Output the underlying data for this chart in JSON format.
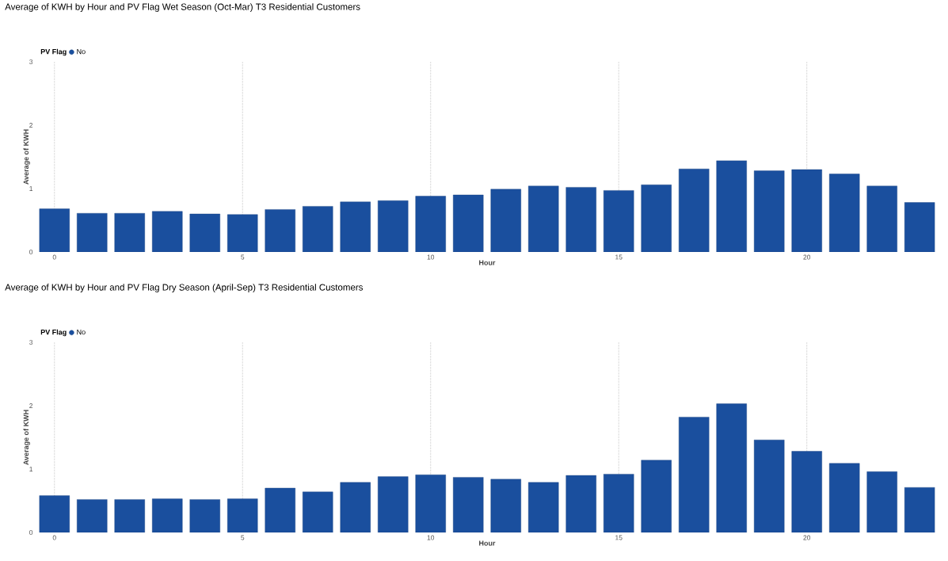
{
  "chart_data": [
    {
      "type": "bar",
      "title": "Average of KWH by Hour and PV Flag Wet Season (Oct-Mar) T3 Residential Customers",
      "xlabel": "Hour",
      "ylabel": "Average of KWH",
      "legend_title": "PV Flag",
      "legend": "top left",
      "grid": "x",
      "x": [
        0,
        1,
        2,
        3,
        4,
        5,
        6,
        7,
        8,
        9,
        10,
        11,
        12,
        13,
        14,
        15,
        16,
        17,
        18,
        19,
        20,
        21,
        22,
        23
      ],
      "series": [
        {
          "name": "No",
          "color": "#1a4f9e",
          "values": [
            0.68,
            0.61,
            0.61,
            0.64,
            0.6,
            0.59,
            0.67,
            0.72,
            0.79,
            0.81,
            0.88,
            0.9,
            0.99,
            1.04,
            1.02,
            0.97,
            1.06,
            1.31,
            1.44,
            1.28,
            1.3,
            1.23,
            1.04,
            0.78
          ]
        }
      ],
      "xlim": [
        -0.5,
        23.5
      ],
      "xticks": [
        0,
        5,
        10,
        15,
        20
      ],
      "ylim": [
        0,
        3
      ],
      "yticks": [
        0,
        1,
        2,
        3
      ]
    },
    {
      "type": "bar",
      "title": "Average of KWH by Hour and PV Flag Dry Season (April-Sep) T3 Residential Customers",
      "xlabel": "Hour",
      "ylabel": "Average of KWH",
      "legend_title": "PV Flag",
      "legend": "top left",
      "grid": "x",
      "x": [
        0,
        1,
        2,
        3,
        4,
        5,
        6,
        7,
        8,
        9,
        10,
        11,
        12,
        13,
        14,
        15,
        16,
        17,
        18,
        19,
        20,
        21,
        22,
        23
      ],
      "series": [
        {
          "name": "No",
          "color": "#1a4f9e",
          "values": [
            0.58,
            0.52,
            0.52,
            0.53,
            0.52,
            0.53,
            0.7,
            0.64,
            0.79,
            0.88,
            0.91,
            0.87,
            0.84,
            0.79,
            0.9,
            0.92,
            1.14,
            1.82,
            2.03,
            1.46,
            1.28,
            1.09,
            0.96,
            0.71
          ]
        }
      ],
      "xlim": [
        -0.5,
        23.5
      ],
      "xticks": [
        0,
        5,
        10,
        15,
        20
      ],
      "ylim": [
        0,
        3
      ],
      "yticks": [
        0,
        1,
        2,
        3
      ]
    }
  ]
}
